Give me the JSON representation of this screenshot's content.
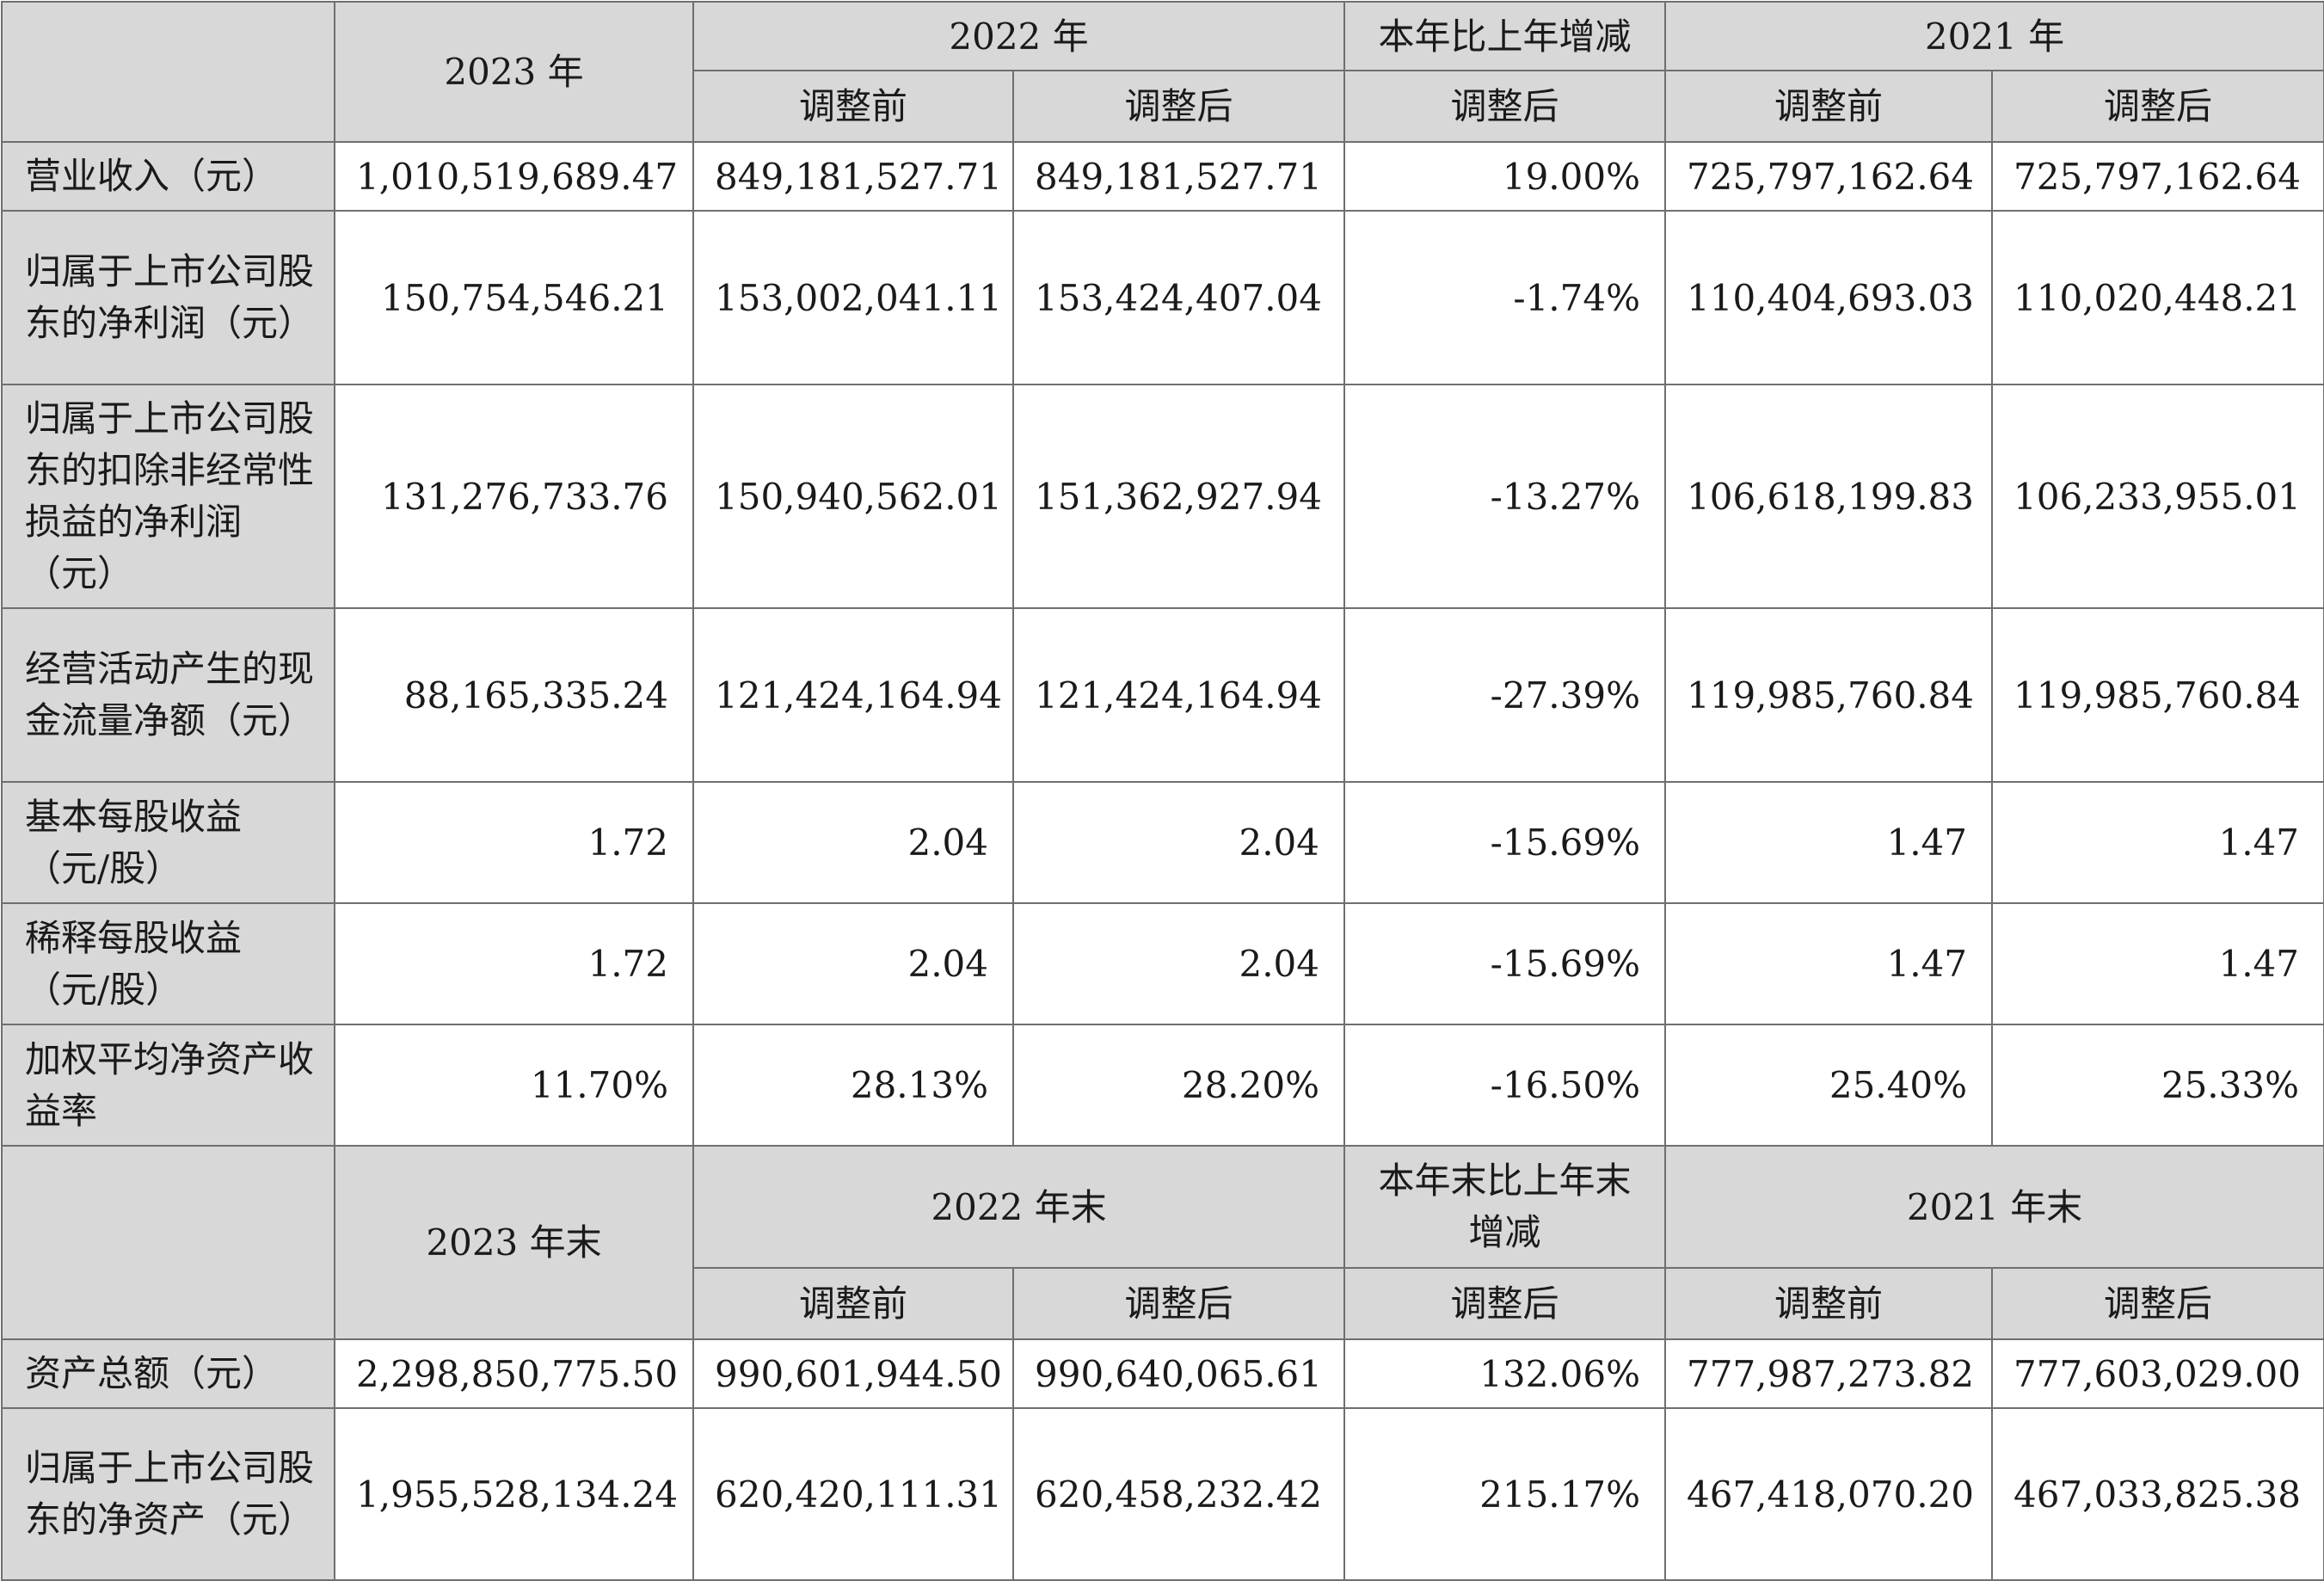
{
  "header_top": {
    "y2023": "2023 年",
    "y2022": "2022 年",
    "change": "本年比上年增减",
    "y2021": "2021 年",
    "before": "调整前",
    "after": "调整后"
  },
  "rows_top": [
    {
      "label": "营业收入（元）",
      "v2023": "1,010,519,689.47",
      "v2022_before": "849,181,527.71",
      "v2022_after": "849,181,527.71",
      "change": "19.00%",
      "v2021_before": "725,797,162.64",
      "v2021_after": "725,797,162.64"
    },
    {
      "label": "归属于上市公司股东的净利润（元）",
      "v2023": "150,754,546.21",
      "v2022_before": "153,002,041.11",
      "v2022_after": "153,424,407.04",
      "change": "-1.74%",
      "v2021_before": "110,404,693.03",
      "v2021_after": "110,020,448.21"
    },
    {
      "label": "归属于上市公司股东的扣除非经常性损益的净利润（元）",
      "v2023": "131,276,733.76",
      "v2022_before": "150,940,562.01",
      "v2022_after": "151,362,927.94",
      "change": "-13.27%",
      "v2021_before": "106,618,199.83",
      "v2021_after": "106,233,955.01"
    },
    {
      "label": "经营活动产生的现金流量净额（元）",
      "v2023": "88,165,335.24",
      "v2022_before": "121,424,164.94",
      "v2022_after": "121,424,164.94",
      "change": "-27.39%",
      "v2021_before": "119,985,760.84",
      "v2021_after": "119,985,760.84"
    },
    {
      "label": "基本每股收益（元/股）",
      "v2023": "1.72",
      "v2022_before": "2.04",
      "v2022_after": "2.04",
      "change": "-15.69%",
      "v2021_before": "1.47",
      "v2021_after": "1.47"
    },
    {
      "label": "稀释每股收益（元/股）",
      "v2023": "1.72",
      "v2022_before": "2.04",
      "v2022_after": "2.04",
      "change": "-15.69%",
      "v2021_before": "1.47",
      "v2021_after": "1.47"
    },
    {
      "label": "加权平均净资产收益率",
      "v2023": "11.70%",
      "v2022_before": "28.13%",
      "v2022_after": "28.20%",
      "change": "-16.50%",
      "v2021_before": "25.40%",
      "v2021_after": "25.33%"
    }
  ],
  "header_bottom": {
    "y2023": "2023 年末",
    "y2022": "2022 年末",
    "change": "本年末比上年末增减",
    "y2021": "2021 年末",
    "before": "调整前",
    "after": "调整后"
  },
  "rows_bottom": [
    {
      "label": "资产总额（元）",
      "v2023": "2,298,850,775.50",
      "v2022_before": "990,601,944.50",
      "v2022_after": "990,640,065.61",
      "change": "132.06%",
      "v2021_before": "777,987,273.82",
      "v2021_after": "777,603,029.00"
    },
    {
      "label": "归属于上市公司股东的净资产（元）",
      "v2023": "1,955,528,134.24",
      "v2022_before": "620,420,111.31",
      "v2022_after": "620,458,232.42",
      "change": "215.17%",
      "v2021_before": "467,418,070.20",
      "v2021_after": "467,033,825.38"
    }
  ]
}
